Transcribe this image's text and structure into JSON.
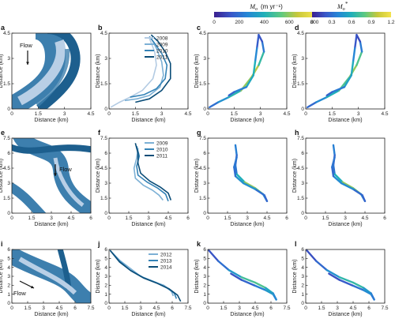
{
  "colors": {
    "map_band": "#3d7fae",
    "map_light": "#b9cfe6",
    "map_dark": "#1d5f8e",
    "years": {
      "2008": "#b3cbe3",
      "2009": "#7cb0d5",
      "2010": "#3483b7",
      "2011": "#0b4d78",
      "2012": "#7cb0d5",
      "2013": "#3483b7",
      "2014": "#0b4d78"
    },
    "colormap": [
      "#3b1f8f",
      "#3957c9",
      "#2586d6",
      "#20b0b9",
      "#5ec980",
      "#c7c83b",
      "#f4e34c"
    ]
  },
  "colorbars": [
    {
      "title": "M",
      "title_sub": "o",
      "unit": "(m yr⁻¹)",
      "ticks": [
        "0",
        "200",
        "400",
        "600",
        "800"
      ]
    },
    {
      "title": "M",
      "title_sub": "o",
      "title_sup": "*",
      "ticks": [
        "0",
        "0.3",
        "0.6",
        "0.9",
        "1.2"
      ]
    }
  ],
  "flow_label": "Flow",
  "panels": [
    {
      "label": "a",
      "kind": "map",
      "row": 0,
      "xlabel": "Distance (km)",
      "ylabel": "Distance (km)",
      "xticks": [
        "0",
        "1.5",
        "3",
        "4.5"
      ],
      "yticks": [
        "0",
        "1.5",
        "3",
        "4.5"
      ],
      "xlim": [
        0,
        4.5
      ],
      "ylim": [
        0,
        4.5
      ]
    },
    {
      "label": "b",
      "kind": "lines",
      "row": 0,
      "xlabel": "Distance (km)",
      "ylabel": "Distance (km)",
      "xticks": [
        "0",
        "1.5",
        "3",
        "4.5"
      ],
      "yticks": [
        "0",
        "1.5",
        "3",
        "4.5"
      ],
      "xlim": [
        0,
        4.5
      ],
      "ylim": [
        0,
        4.5
      ],
      "legend": [
        "2008",
        "2009",
        "2010",
        "2011"
      ]
    },
    {
      "label": "c",
      "kind": "colored",
      "row": 0,
      "xlabel": "Distance (km)",
      "ylabel": "Distance (km)",
      "xticks": [
        "0",
        "1.5",
        "3",
        "4.5"
      ],
      "yticks": [
        "0",
        "1.5",
        "3",
        "4.5"
      ],
      "xlim": [
        0,
        4.5
      ],
      "ylim": [
        0,
        4.5
      ]
    },
    {
      "label": "d",
      "kind": "colored",
      "row": 0,
      "xlabel": "Distance (km)",
      "ylabel": "Distance (km)",
      "xticks": [
        "0",
        "1.5",
        "3",
        "4.5"
      ],
      "yticks": [
        "0",
        "1.5",
        "3",
        "4.5"
      ],
      "xlim": [
        0,
        4.5
      ],
      "ylim": [
        0,
        4.5
      ]
    },
    {
      "label": "e",
      "kind": "map",
      "row": 1,
      "xlabel": "Distance (km)",
      "ylabel": "Distance (km)",
      "xticks": [
        "0",
        "1.5",
        "3",
        "4.5",
        "6"
      ],
      "yticks": [
        "0",
        "1.5",
        "3",
        "4.5",
        "6",
        "7.5"
      ],
      "xlim": [
        0,
        6
      ],
      "ylim": [
        0,
        7.5
      ]
    },
    {
      "label": "f",
      "kind": "lines",
      "row": 1,
      "xlabel": "Distance (km)",
      "ylabel": "Distance (km)",
      "xticks": [
        "0",
        "1.5",
        "3",
        "4.5",
        "6"
      ],
      "yticks": [
        "0",
        "1.5",
        "3",
        "4.5",
        "6",
        "7.5"
      ],
      "xlim": [
        0,
        6
      ],
      "ylim": [
        0,
        7.5
      ],
      "legend": [
        "2009",
        "2010",
        "2011"
      ]
    },
    {
      "label": "g",
      "kind": "colored",
      "row": 1,
      "xlabel": "Distance (km)",
      "ylabel": "Distance (km)",
      "xticks": [
        "0",
        "1.5",
        "3",
        "4.5",
        "6"
      ],
      "yticks": [
        "0",
        "1.5",
        "3",
        "4.5",
        "6",
        "7.5"
      ],
      "xlim": [
        0,
        6
      ],
      "ylim": [
        0,
        7.5
      ]
    },
    {
      "label": "h",
      "kind": "colored",
      "row": 1,
      "xlabel": "Distance (km)",
      "ylabel": "Distance (km)",
      "xticks": [
        "0",
        "1.5",
        "3",
        "4.5",
        "6"
      ],
      "yticks": [
        "0",
        "1.5",
        "3",
        "4.5",
        "6",
        "7.5"
      ],
      "xlim": [
        0,
        6
      ],
      "ylim": [
        0,
        7.5
      ]
    },
    {
      "label": "i",
      "kind": "map",
      "row": 2,
      "xlabel": "Distance (km)",
      "ylabel": "Distance (km)",
      "xticks": [
        "0",
        "1.5",
        "3",
        "4.5",
        "6",
        "7.5"
      ],
      "yticks": [
        "0",
        "1",
        "2",
        "3",
        "4",
        "5",
        "6"
      ],
      "xlim": [
        0,
        7.5
      ],
      "ylim": [
        0,
        6
      ]
    },
    {
      "label": "j",
      "kind": "lines",
      "row": 2,
      "xlabel": "Distance (km)",
      "ylabel": "Distance (km)",
      "xticks": [
        "0",
        "1.5",
        "3",
        "4.5",
        "6",
        "7.5"
      ],
      "yticks": [
        "0",
        "1",
        "2",
        "3",
        "4",
        "5",
        "6"
      ],
      "xlim": [
        0,
        7.5
      ],
      "ylim": [
        0,
        6
      ],
      "legend": [
        "2012",
        "2013",
        "2014"
      ]
    },
    {
      "label": "k",
      "kind": "colored",
      "row": 2,
      "xlabel": "Distance (km)",
      "ylabel": "Distance (km)",
      "xticks": [
        "0",
        "1.5",
        "3",
        "4.5",
        "6",
        "7.5"
      ],
      "yticks": [
        "0",
        "1",
        "2",
        "3",
        "4",
        "5",
        "6"
      ],
      "xlim": [
        0,
        7.5
      ],
      "ylim": [
        0,
        6
      ]
    },
    {
      "label": "l",
      "kind": "colored",
      "row": 2,
      "xlabel": "Distance (km)",
      "ylabel": "Distance (km)",
      "xticks": [
        "0",
        "1.5",
        "3",
        "4.5",
        "6",
        "7.5"
      ],
      "yticks": [
        "0",
        "1",
        "2",
        "3",
        "4",
        "5",
        "6"
      ],
      "xlim": [
        0,
        7.5
      ],
      "ylim": [
        0,
        6
      ]
    }
  ],
  "chart_data": [
    {
      "type": "line",
      "panel": "b",
      "xlabel": "Distance (km)",
      "ylabel": "Distance (km)",
      "xlim": [
        0,
        4.5
      ],
      "ylim": [
        0,
        4.5
      ],
      "series": [
        {
          "name": "2008",
          "x": [
            0.1,
            0.6,
            1.2,
            1.9,
            2.5,
            2.7,
            2.6,
            2.3
          ],
          "y": [
            0.1,
            0.4,
            0.7,
            1.1,
            1.8,
            2.6,
            3.4,
            4.2
          ]
        },
        {
          "name": "2009",
          "x": [
            0.9,
            1.6,
            2.3,
            2.9,
            3.1,
            3.0,
            2.7,
            2.4
          ],
          "y": [
            0.5,
            0.6,
            0.8,
            1.3,
            2.0,
            2.8,
            3.6,
            4.2
          ]
        },
        {
          "name": "2010",
          "x": [
            1.2,
            2.0,
            2.7,
            3.2,
            3.3,
            3.0,
            2.6,
            2.3
          ],
          "y": [
            0.7,
            0.85,
            1.2,
            1.8,
            2.6,
            3.3,
            3.9,
            4.3
          ]
        },
        {
          "name": "2011",
          "x": [
            1.5,
            2.3,
            3.0,
            3.5,
            3.5,
            3.2,
            2.8,
            2.4
          ],
          "y": [
            0.4,
            0.6,
            1.1,
            1.8,
            2.7,
            3.4,
            4.0,
            4.4
          ]
        }
      ]
    },
    {
      "type": "line",
      "panel": "f",
      "xlabel": "Distance (km)",
      "ylabel": "Distance (km)",
      "xlim": [
        0,
        6
      ],
      "ylim": [
        0,
        7.5
      ],
      "series": [
        {
          "name": "2009",
          "x": [
            2.2,
            2.1,
            1.9,
            2.0,
            2.6,
            3.3,
            3.8,
            4.1
          ],
          "y": [
            6.5,
            5.5,
            4.5,
            3.5,
            2.8,
            2.3,
            1.8,
            1.3
          ]
        },
        {
          "name": "2010",
          "x": [
            2.1,
            2.3,
            2.1,
            2.2,
            2.9,
            3.7,
            4.3,
            4.5
          ],
          "y": [
            6.7,
            5.7,
            4.7,
            3.8,
            3.1,
            2.5,
            1.9,
            1.2
          ]
        },
        {
          "name": "2011",
          "x": [
            2.0,
            2.2,
            2.2,
            2.4,
            3.1,
            3.9,
            4.5,
            4.7
          ],
          "y": [
            7.0,
            6.0,
            5.0,
            4.0,
            3.2,
            2.6,
            2.0,
            1.3
          ]
        }
      ]
    },
    {
      "type": "line",
      "panel": "j",
      "xlabel": "Distance (km)",
      "ylabel": "Distance (km)",
      "xlim": [
        0,
        7.5
      ],
      "ylim": [
        0,
        6
      ],
      "series": [
        {
          "name": "2012",
          "x": [
            0.1,
            1.0,
            2.0,
            3.0,
            4.2,
            5.2,
            5.9,
            6.1
          ],
          "y": [
            5.9,
            4.8,
            3.9,
            3.0,
            2.4,
            2.0,
            1.4,
            0.8
          ]
        },
        {
          "name": "2013",
          "x": [
            0.1,
            1.0,
            2.0,
            3.2,
            4.5,
            5.5,
            6.2,
            6.4
          ],
          "y": [
            5.9,
            4.7,
            3.7,
            2.9,
            2.3,
            1.7,
            1.1,
            0.5
          ]
        },
        {
          "name": "2014",
          "x": [
            0.1,
            1.0,
            2.1,
            3.3,
            4.6,
            5.7,
            6.5,
            6.8
          ],
          "y": [
            5.9,
            4.6,
            3.6,
            2.8,
            2.2,
            1.6,
            0.9,
            0.2
          ]
        }
      ]
    },
    {
      "type": "line",
      "panel": "c",
      "value_name": "Mo (m yr-1)",
      "x": [
        0.1,
        0.6,
        1.2,
        1.9,
        2.5,
        2.9,
        3.2,
        3.1,
        2.9,
        2.8,
        2.7,
        2.6,
        2.2,
        1.5,
        1.2
      ],
      "y": [
        0.1,
        0.4,
        0.7,
        1.1,
        1.9,
        2.6,
        3.4,
        4.0,
        4.4,
        3.6,
        2.8,
        2.0,
        1.3,
        1.0,
        0.8
      ],
      "values": [
        150,
        250,
        350,
        500,
        700,
        600,
        300,
        150,
        100,
        200,
        350,
        450,
        300,
        200,
        150
      ]
    },
    {
      "type": "line",
      "panel": "d",
      "value_name": "Mo*",
      "x": [
        0.1,
        0.6,
        1.2,
        1.9,
        2.5,
        2.9,
        3.2,
        3.1,
        2.9,
        2.8,
        2.7,
        2.6,
        2.2,
        1.5,
        1.2
      ],
      "y": [
        0.1,
        0.4,
        0.7,
        1.1,
        1.9,
        2.6,
        3.4,
        4.0,
        4.4,
        3.6,
        2.8,
        2.0,
        1.3,
        1.0,
        0.8
      ],
      "values": [
        0.2,
        0.35,
        0.5,
        0.7,
        0.8,
        1.0,
        0.5,
        0.2,
        0.1,
        0.3,
        0.5,
        0.65,
        0.4,
        0.3,
        0.2
      ]
    },
    {
      "type": "line",
      "panel": "g",
      "value_name": "Mo (m yr-1)",
      "x": [
        2.1,
        2.2,
        2.1,
        2.2,
        2.8,
        3.6,
        4.2,
        4.5,
        4.3,
        3.6,
        2.7,
        2.1,
        2.0,
        2.2
      ],
      "y": [
        6.8,
        5.8,
        4.8,
        3.9,
        3.1,
        2.5,
        1.9,
        1.2,
        1.8,
        2.4,
        3.0,
        3.7,
        4.6,
        5.6
      ],
      "values": [
        300,
        200,
        150,
        300,
        500,
        700,
        400,
        200,
        150,
        250,
        350,
        250,
        150,
        300
      ]
    },
    {
      "type": "line",
      "panel": "h",
      "value_name": "Mo*",
      "x": [
        2.1,
        2.2,
        2.1,
        2.2,
        2.8,
        3.6,
        4.2,
        4.5,
        4.3,
        3.6,
        2.7,
        2.1,
        2.0,
        2.2
      ],
      "y": [
        6.8,
        5.8,
        4.8,
        3.9,
        3.1,
        2.5,
        1.9,
        1.2,
        1.8,
        2.4,
        3.0,
        3.7,
        4.6,
        5.6
      ],
      "values": [
        0.45,
        0.3,
        0.2,
        0.45,
        0.75,
        1.05,
        0.6,
        0.3,
        0.2,
        0.35,
        0.5,
        0.35,
        0.2,
        0.45
      ]
    },
    {
      "type": "line",
      "panel": "k",
      "value_name": "Mo (m yr-1)",
      "x": [
        0.1,
        1.0,
        2.0,
        3.2,
        4.5,
        5.5,
        6.2,
        6.5,
        6.2,
        5.4,
        4.4,
        3.2,
        2.2
      ],
      "y": [
        5.9,
        4.7,
        3.7,
        2.9,
        2.3,
        1.7,
        1.1,
        0.4,
        1.0,
        1.5,
        2.0,
        2.6,
        3.3
      ],
      "values": [
        100,
        150,
        250,
        400,
        550,
        450,
        300,
        200,
        350,
        300,
        200,
        150,
        100
      ]
    },
    {
      "type": "line",
      "panel": "l",
      "value_name": "Mo*",
      "x": [
        0.1,
        1.0,
        2.0,
        3.2,
        4.5,
        5.5,
        6.2,
        6.5,
        6.2,
        5.4,
        4.4,
        3.2,
        2.2
      ],
      "y": [
        5.9,
        4.7,
        3.7,
        2.9,
        2.3,
        1.7,
        1.1,
        0.4,
        1.0,
        1.5,
        2.0,
        2.6,
        3.3
      ],
      "values": [
        0.15,
        0.2,
        0.35,
        0.55,
        0.75,
        0.6,
        0.4,
        0.25,
        0.45,
        0.4,
        0.25,
        0.2,
        0.15
      ]
    }
  ]
}
